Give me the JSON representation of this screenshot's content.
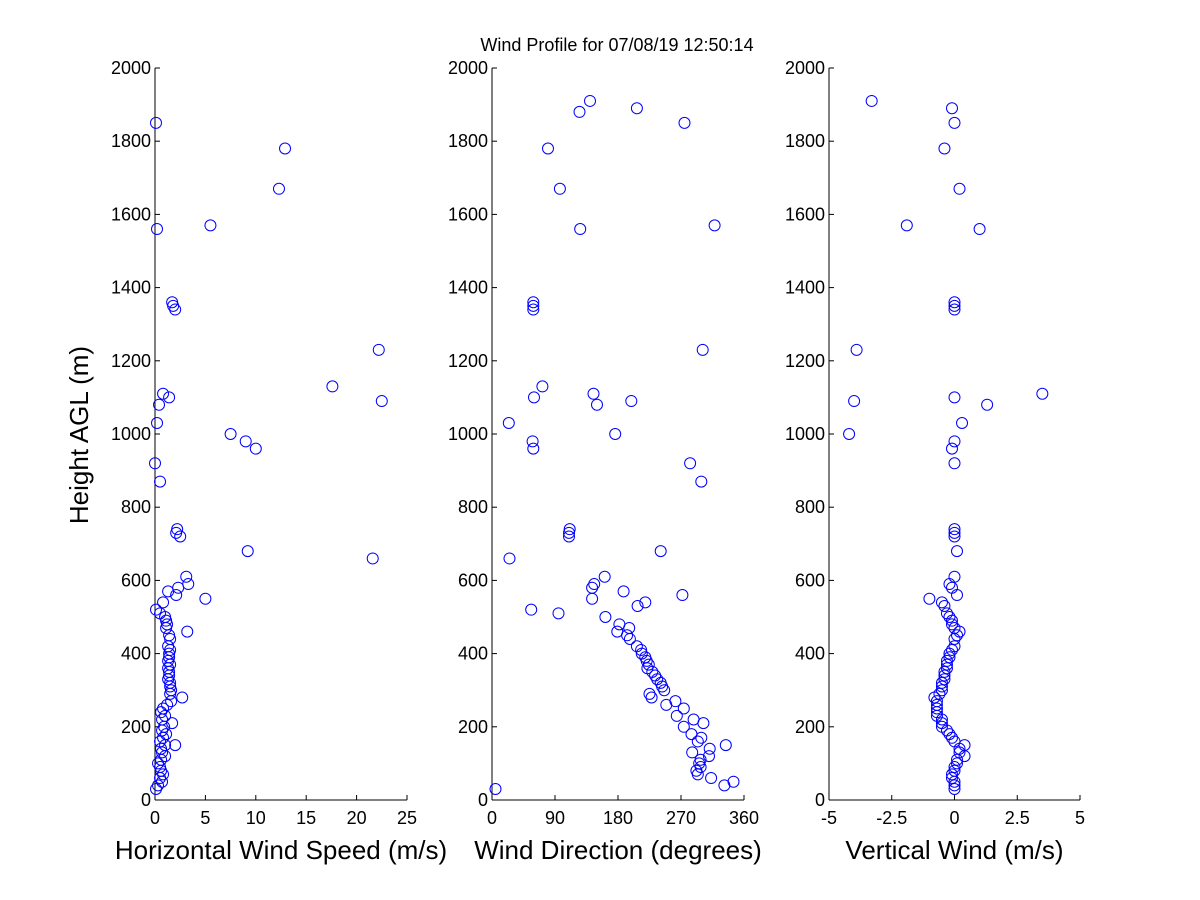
{
  "figure": {
    "title": "Wind Profile for  07/08/19 12:50:14",
    "ylabel": "Height AGL (m)"
  },
  "chart_data": [
    {
      "type": "scatter",
      "xlabel": "Horizontal Wind Speed (m/s)",
      "ylabel": "Height AGL (m)",
      "xlim": [
        0,
        25
      ],
      "ylim": [
        0,
        2000
      ],
      "xticks": [
        0,
        5,
        10,
        15,
        20,
        25
      ],
      "xtick_labels": [
        "0",
        "5",
        "10",
        "15",
        "20",
        "25"
      ],
      "yticks": [
        0,
        200,
        400,
        600,
        800,
        1000,
        1200,
        1400,
        1600,
        1800,
        2000
      ],
      "ytick_labels": [
        "0",
        "200",
        "400",
        "600",
        "800",
        "1000",
        "1200",
        "1400",
        "1600",
        "1800",
        "2000"
      ],
      "marker": "open-circle",
      "color": "#0000ff",
      "points": [
        [
          0.1,
          1850
        ],
        [
          12.9,
          1780
        ],
        [
          12.3,
          1670
        ],
        [
          5.5,
          1570
        ],
        [
          0.2,
          1560
        ],
        [
          1.7,
          1360
        ],
        [
          1.8,
          1350
        ],
        [
          2.0,
          1340
        ],
        [
          22.2,
          1230
        ],
        [
          17.6,
          1130
        ],
        [
          0.8,
          1110
        ],
        [
          1.4,
          1100
        ],
        [
          22.5,
          1090
        ],
        [
          0.4,
          1080
        ],
        [
          0.2,
          1030
        ],
        [
          7.5,
          1000
        ],
        [
          9.0,
          980
        ],
        [
          10.0,
          960
        ],
        [
          0.0,
          920
        ],
        [
          0.5,
          870
        ],
        [
          2.2,
          740
        ],
        [
          2.1,
          730
        ],
        [
          2.5,
          720
        ],
        [
          9.2,
          680
        ],
        [
          21.6,
          660
        ],
        [
          3.1,
          610
        ],
        [
          3.3,
          590
        ],
        [
          2.3,
          580
        ],
        [
          1.3,
          570
        ],
        [
          2.1,
          560
        ],
        [
          5.0,
          550
        ],
        [
          0.8,
          540
        ],
        [
          0.1,
          520
        ],
        [
          0.5,
          510
        ],
        [
          1.0,
          500
        ],
        [
          1.1,
          490
        ],
        [
          1.2,
          480
        ],
        [
          1.1,
          470
        ],
        [
          3.2,
          460
        ],
        [
          1.4,
          450
        ],
        [
          1.5,
          440
        ],
        [
          1.3,
          420
        ],
        [
          1.5,
          410
        ],
        [
          1.4,
          400
        ],
        [
          1.4,
          390
        ],
        [
          1.3,
          380
        ],
        [
          1.5,
          370
        ],
        [
          1.3,
          360
        ],
        [
          1.4,
          350
        ],
        [
          1.4,
          340
        ],
        [
          1.3,
          330
        ],
        [
          1.5,
          320
        ],
        [
          1.5,
          310
        ],
        [
          1.6,
          300
        ],
        [
          1.5,
          290
        ],
        [
          2.7,
          280
        ],
        [
          1.6,
          270
        ],
        [
          1.2,
          260
        ],
        [
          0.8,
          250
        ],
        [
          0.6,
          240
        ],
        [
          1.0,
          230
        ],
        [
          0.7,
          220
        ],
        [
          1.7,
          210
        ],
        [
          0.9,
          200
        ],
        [
          0.7,
          190
        ],
        [
          1.1,
          180
        ],
        [
          0.8,
          170
        ],
        [
          0.5,
          160
        ],
        [
          1.0,
          150
        ],
        [
          2.0,
          150
        ],
        [
          0.6,
          140
        ],
        [
          0.7,
          130
        ],
        [
          1.0,
          120
        ],
        [
          0.6,
          110
        ],
        [
          0.3,
          100
        ],
        [
          0.5,
          90
        ],
        [
          0.6,
          80
        ],
        [
          0.8,
          70
        ],
        [
          0.5,
          60
        ],
        [
          0.7,
          50
        ],
        [
          0.3,
          40
        ],
        [
          0.1,
          30
        ]
      ]
    },
    {
      "type": "scatter",
      "xlabel": "Wind Direction (degrees)",
      "ylabel": "",
      "xlim": [
        0,
        360
      ],
      "ylim": [
        0,
        2000
      ],
      "xticks": [
        0,
        90,
        180,
        270,
        360
      ],
      "xtick_labels": [
        "0",
        "90",
        "180",
        "270",
        "360"
      ],
      "yticks": [
        0,
        200,
        400,
        600,
        800,
        1000,
        1200,
        1400,
        1600,
        1800,
        2000
      ],
      "ytick_labels": [
        "0",
        "200",
        "400",
        "600",
        "800",
        "1000",
        "1200",
        "1400",
        "1600",
        "1800",
        "2000"
      ],
      "marker": "open-circle",
      "color": "#0000ff",
      "points": [
        [
          140,
          1910
        ],
        [
          125,
          1880
        ],
        [
          207,
          1890
        ],
        [
          275,
          1850
        ],
        [
          80,
          1780
        ],
        [
          97,
          1670
        ],
        [
          318,
          1570
        ],
        [
          126,
          1560
        ],
        [
          59,
          1360
        ],
        [
          59,
          1350
        ],
        [
          59,
          1340
        ],
        [
          301,
          1230
        ],
        [
          72,
          1130
        ],
        [
          145,
          1110
        ],
        [
          60,
          1100
        ],
        [
          199,
          1090
        ],
        [
          150,
          1080
        ],
        [
          24,
          1030
        ],
        [
          176,
          1000
        ],
        [
          58,
          980
        ],
        [
          59,
          960
        ],
        [
          283,
          920
        ],
        [
          299,
          870
        ],
        [
          111,
          740
        ],
        [
          110,
          730
        ],
        [
          110,
          720
        ],
        [
          241,
          680
        ],
        [
          25,
          660
        ],
        [
          161,
          610
        ],
        [
          146,
          590
        ],
        [
          143,
          580
        ],
        [
          188,
          570
        ],
        [
          272,
          560
        ],
        [
          143,
          550
        ],
        [
          219,
          540
        ],
        [
          208,
          530
        ],
        [
          56,
          520
        ],
        [
          95,
          510
        ],
        [
          162,
          500
        ],
        [
          182,
          480
        ],
        [
          196,
          470
        ],
        [
          179,
          460
        ],
        [
          193,
          450
        ],
        [
          197,
          440
        ],
        [
          207,
          420
        ],
        [
          213,
          410
        ],
        [
          214,
          400
        ],
        [
          219,
          390
        ],
        [
          221,
          380
        ],
        [
          224,
          370
        ],
        [
          222,
          360
        ],
        [
          229,
          350
        ],
        [
          233,
          340
        ],
        [
          236,
          330
        ],
        [
          241,
          320
        ],
        [
          243,
          310
        ],
        [
          246,
          300
        ],
        [
          225,
          290
        ],
        [
          228,
          280
        ],
        [
          262,
          270
        ],
        [
          249,
          260
        ],
        [
          274,
          250
        ],
        [
          264,
          230
        ],
        [
          288,
          220
        ],
        [
          302,
          210
        ],
        [
          274,
          200
        ],
        [
          285,
          180
        ],
        [
          299,
          170
        ],
        [
          294,
          160
        ],
        [
          334,
          150
        ],
        [
          311,
          140
        ],
        [
          286,
          130
        ],
        [
          310,
          120
        ],
        [
          298,
          110
        ],
        [
          296,
          100
        ],
        [
          298,
          90
        ],
        [
          292,
          80
        ],
        [
          294,
          70
        ],
        [
          313,
          60
        ],
        [
          345,
          50
        ],
        [
          332,
          40
        ],
        [
          5,
          30
        ]
      ]
    },
    {
      "type": "scatter",
      "xlabel": "Vertical Wind (m/s)",
      "ylabel": "",
      "xlim": [
        -5,
        5
      ],
      "ylim": [
        0,
        2000
      ],
      "xticks": [
        -5,
        -2.5,
        0,
        2.5,
        5
      ],
      "xtick_labels": [
        "-5",
        "-2.5",
        "0",
        "2.5",
        "5"
      ],
      "yticks": [
        0,
        200,
        400,
        600,
        800,
        1000,
        1200,
        1400,
        1600,
        1800,
        2000
      ],
      "ytick_labels": [
        "0",
        "200",
        "400",
        "600",
        "800",
        "1000",
        "1200",
        "1400",
        "1600",
        "1800",
        "2000"
      ],
      "marker": "open-circle",
      "color": "#0000ff",
      "points": [
        [
          -3.3,
          1910
        ],
        [
          -0.1,
          1890
        ],
        [
          0.0,
          1850
        ],
        [
          -0.4,
          1780
        ],
        [
          0.2,
          1670
        ],
        [
          -1.9,
          1570
        ],
        [
          1.0,
          1560
        ],
        [
          0.0,
          1360
        ],
        [
          0.0,
          1350
        ],
        [
          0.0,
          1340
        ],
        [
          -3.9,
          1230
        ],
        [
          3.5,
          1110
        ],
        [
          0.0,
          1100
        ],
        [
          -4.0,
          1090
        ],
        [
          1.3,
          1080
        ],
        [
          0.3,
          1030
        ],
        [
          -4.2,
          1000
        ],
        [
          0.0,
          980
        ],
        [
          -0.1,
          960
        ],
        [
          0.0,
          920
        ],
        [
          0.0,
          740
        ],
        [
          0.0,
          730
        ],
        [
          0.0,
          720
        ],
        [
          0.1,
          680
        ],
        [
          0.0,
          610
        ],
        [
          -0.2,
          590
        ],
        [
          -0.1,
          580
        ],
        [
          0.1,
          560
        ],
        [
          -1.0,
          550
        ],
        [
          -0.5,
          540
        ],
        [
          -0.4,
          530
        ],
        [
          -0.3,
          510
        ],
        [
          -0.2,
          500
        ],
        [
          -0.1,
          490
        ],
        [
          -0.1,
          480
        ],
        [
          0.0,
          470
        ],
        [
          0.2,
          460
        ],
        [
          0.1,
          450
        ],
        [
          0.0,
          440
        ],
        [
          0.0,
          420
        ],
        [
          -0.1,
          410
        ],
        [
          -0.2,
          400
        ],
        [
          -0.2,
          390
        ],
        [
          -0.3,
          380
        ],
        [
          -0.3,
          370
        ],
        [
          -0.3,
          360
        ],
        [
          -0.4,
          350
        ],
        [
          -0.4,
          340
        ],
        [
          -0.4,
          330
        ],
        [
          -0.5,
          320
        ],
        [
          -0.5,
          310
        ],
        [
          -0.5,
          300
        ],
        [
          -0.6,
          290
        ],
        [
          -0.8,
          280
        ],
        [
          -0.7,
          270
        ],
        [
          -0.7,
          260
        ],
        [
          -0.7,
          250
        ],
        [
          -0.7,
          240
        ],
        [
          -0.7,
          230
        ],
        [
          -0.5,
          220
        ],
        [
          -0.5,
          210
        ],
        [
          -0.5,
          200
        ],
        [
          -0.3,
          190
        ],
        [
          -0.2,
          180
        ],
        [
          -0.1,
          170
        ],
        [
          0.0,
          160
        ],
        [
          0.4,
          150
        ],
        [
          0.2,
          140
        ],
        [
          0.2,
          130
        ],
        [
          0.4,
          120
        ],
        [
          0.1,
          110
        ],
        [
          0.1,
          100
        ],
        [
          0.0,
          90
        ],
        [
          0.0,
          80
        ],
        [
          -0.1,
          70
        ],
        [
          -0.1,
          60
        ],
        [
          0.0,
          50
        ],
        [
          0.0,
          40
        ],
        [
          0.0,
          30
        ]
      ]
    }
  ]
}
